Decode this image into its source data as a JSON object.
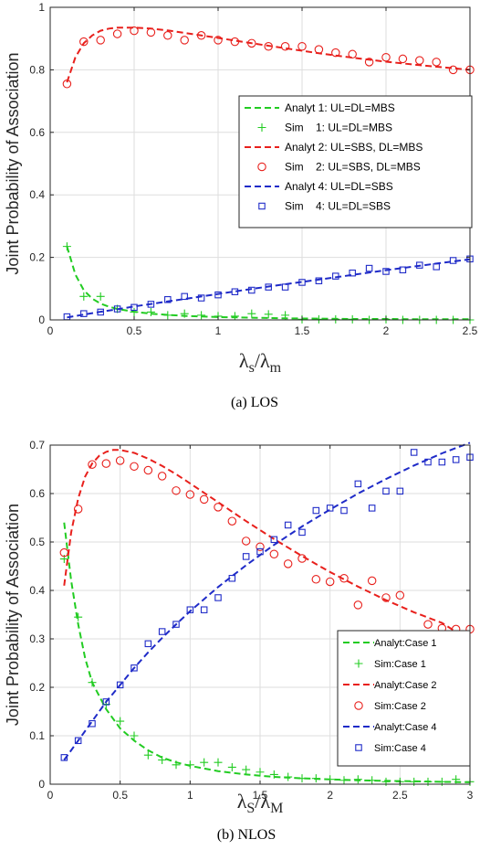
{
  "colors": {
    "green": "#22cc22",
    "red": "#e8201c",
    "blue": "#1f2bc8"
  },
  "chart_data": [
    {
      "type": "line",
      "caption": "(a) LOS",
      "ylabel": "Joint Probability of Association",
      "xlabel": {
        "main1": "λ",
        "sub1": "s",
        "slash": "/λ",
        "sub2": "m"
      },
      "xlim": [
        0,
        2.5
      ],
      "ylim": [
        0,
        1
      ],
      "xticks": [
        0,
        0.5,
        1,
        1.5,
        2,
        2.5
      ],
      "yticks": [
        0,
        0.2,
        0.4,
        0.6,
        0.8,
        1
      ],
      "xtick_labels": [
        "0",
        "0.5",
        "1",
        "1.5",
        "2",
        "2.5"
      ],
      "ytick_labels": [
        "0",
        "0.2",
        "0.4",
        "0.6",
        "0.8",
        "1"
      ],
      "grid": true,
      "legend_position": "right-middle",
      "legend": [
        "Analyt 1: UL=DL=MBS",
        "Sim    1: UL=DL=MBS",
        "Analyt 2: UL=SBS, DL=MBS",
        "Sim    2: UL=SBS, DL=MBS",
        "Analyt 4: UL=DL=SBS",
        "Sim    4: UL=DL=SBS"
      ],
      "series": [
        {
          "name": "Analyt 1: UL=DL=MBS",
          "style": "dashed",
          "color": "green",
          "x": [
            0.1,
            0.15,
            0.2,
            0.25,
            0.3,
            0.35,
            0.4,
            0.5,
            0.6,
            0.7,
            0.8,
            0.9,
            1.0,
            1.2,
            1.4,
            1.6,
            1.8,
            2.0,
            2.2,
            2.4,
            2.5
          ],
          "y": [
            0.235,
            0.145,
            0.095,
            0.068,
            0.052,
            0.042,
            0.035,
            0.026,
            0.02,
            0.016,
            0.013,
            0.011,
            0.009,
            0.007,
            0.005,
            0.004,
            0.003,
            0.003,
            0.002,
            0.002,
            0.002
          ]
        },
        {
          "name": "Sim    1: UL=DL=MBS",
          "style": "plus",
          "color": "green",
          "x": [
            0.1,
            0.2,
            0.3,
            0.4,
            0.5,
            0.6,
            0.7,
            0.8,
            0.9,
            1.0,
            1.1,
            1.2,
            1.3,
            1.4,
            1.5,
            1.6,
            1.7,
            1.8,
            1.9,
            2.0,
            2.1,
            2.2,
            2.3,
            2.4,
            2.5
          ],
          "y": [
            0.235,
            0.075,
            0.075,
            0.035,
            0.025,
            0.025,
            0.015,
            0.02,
            0.015,
            0.012,
            0.012,
            0.02,
            0.018,
            0.015,
            0.002,
            0.002,
            0.002,
            0.002,
            0.0,
            0.002,
            0.0,
            0.0,
            0.0,
            0.0,
            0.0
          ]
        },
        {
          "name": "Analyt 2: UL=SBS, DL=MBS",
          "style": "dashed",
          "color": "red",
          "x": [
            0.1,
            0.15,
            0.2,
            0.25,
            0.3,
            0.35,
            0.4,
            0.5,
            0.6,
            0.7,
            0.8,
            0.9,
            1.0,
            1.2,
            1.4,
            1.6,
            1.8,
            2.0,
            2.2,
            2.4,
            2.5
          ],
          "y": [
            0.76,
            0.84,
            0.885,
            0.91,
            0.925,
            0.932,
            0.935,
            0.935,
            0.932,
            0.926,
            0.918,
            0.91,
            0.902,
            0.885,
            0.869,
            0.853,
            0.839,
            0.826,
            0.815,
            0.805,
            0.8
          ]
        },
        {
          "name": "Sim    2: UL=SBS, DL=MBS",
          "style": "circle",
          "color": "red",
          "x": [
            0.1,
            0.2,
            0.3,
            0.4,
            0.5,
            0.6,
            0.7,
            0.8,
            0.9,
            1.0,
            1.1,
            1.2,
            1.3,
            1.4,
            1.5,
            1.6,
            1.7,
            1.8,
            1.9,
            2.0,
            2.1,
            2.2,
            2.3,
            2.4,
            2.5
          ],
          "y": [
            0.755,
            0.89,
            0.895,
            0.915,
            0.925,
            0.92,
            0.91,
            0.895,
            0.91,
            0.895,
            0.89,
            0.885,
            0.875,
            0.875,
            0.875,
            0.865,
            0.855,
            0.85,
            0.825,
            0.84,
            0.835,
            0.83,
            0.825,
            0.8,
            0.8
          ]
        },
        {
          "name": "Analyt 4: UL=DL=SBS",
          "style": "dashed",
          "color": "blue",
          "x": [
            0.1,
            0.2,
            0.3,
            0.4,
            0.5,
            0.6,
            0.7,
            0.8,
            0.9,
            1.0,
            1.2,
            1.4,
            1.6,
            1.8,
            2.0,
            2.2,
            2.4,
            2.5
          ],
          "y": [
            0.008,
            0.017,
            0.026,
            0.034,
            0.043,
            0.051,
            0.059,
            0.067,
            0.075,
            0.083,
            0.099,
            0.114,
            0.129,
            0.144,
            0.159,
            0.173,
            0.187,
            0.194
          ]
        },
        {
          "name": "Sim    4: UL=DL=SBS",
          "style": "square",
          "color": "blue",
          "x": [
            0.1,
            0.2,
            0.3,
            0.4,
            0.5,
            0.6,
            0.7,
            0.8,
            0.9,
            1.0,
            1.1,
            1.2,
            1.3,
            1.4,
            1.5,
            1.6,
            1.7,
            1.8,
            1.9,
            2.0,
            2.1,
            2.2,
            2.3,
            2.4,
            2.5
          ],
          "y": [
            0.01,
            0.02,
            0.025,
            0.035,
            0.04,
            0.05,
            0.065,
            0.075,
            0.07,
            0.08,
            0.09,
            0.095,
            0.105,
            0.105,
            0.12,
            0.125,
            0.14,
            0.15,
            0.165,
            0.155,
            0.16,
            0.175,
            0.17,
            0.19,
            0.195
          ]
        }
      ]
    },
    {
      "type": "line",
      "caption": "(b) NLOS",
      "ylabel": "Joint Probability of Association",
      "xlabel": {
        "main1": "λ",
        "sub1": "S",
        "slash": "/λ",
        "sub2": "M"
      },
      "xlim": [
        0,
        3
      ],
      "ylim": [
        0,
        0.7
      ],
      "xticks": [
        0,
        0.5,
        1,
        1.5,
        2,
        2.5,
        3
      ],
      "yticks": [
        0,
        0.1,
        0.2,
        0.3,
        0.4,
        0.5,
        0.6,
        0.7
      ],
      "xtick_labels": [
        "0",
        "0.5",
        "1",
        "1.5",
        "2",
        "2.5",
        "3"
      ],
      "ytick_labels": [
        "0",
        "0.1",
        "0.2",
        "0.3",
        "0.4",
        "0.5",
        "0.6",
        "0.7"
      ],
      "grid": true,
      "legend_position": "bottom-right",
      "legend": [
        "Analyt:Case 1",
        "Sim:Case 1",
        "Analyt:Case 2",
        "Sim:Case 2",
        "Analyt:Case 4",
        "Sim:Case 4"
      ],
      "series": [
        {
          "name": "Analyt:Case 1",
          "style": "dashed",
          "color": "green",
          "x": [
            0.1,
            0.15,
            0.2,
            0.25,
            0.3,
            0.4,
            0.5,
            0.6,
            0.7,
            0.8,
            0.9,
            1.0,
            1.2,
            1.4,
            1.6,
            1.8,
            2.0,
            2.2,
            2.4,
            2.6,
            2.8,
            3.0
          ],
          "y": [
            0.54,
            0.42,
            0.33,
            0.26,
            0.21,
            0.155,
            0.115,
            0.09,
            0.07,
            0.055,
            0.045,
            0.038,
            0.027,
            0.02,
            0.015,
            0.012,
            0.01,
            0.008,
            0.007,
            0.006,
            0.005,
            0.004
          ]
        },
        {
          "name": "Sim:Case 1",
          "style": "plus",
          "color": "green",
          "x": [
            0.1,
            0.2,
            0.3,
            0.4,
            0.5,
            0.6,
            0.7,
            0.8,
            0.9,
            1.0,
            1.1,
            1.2,
            1.3,
            1.4,
            1.5,
            1.6,
            1.7,
            1.8,
            1.9,
            2.0,
            2.1,
            2.2,
            2.3,
            2.4,
            2.5,
            2.6,
            2.7,
            2.8,
            2.9,
            3.0
          ],
          "y": [
            0.465,
            0.345,
            0.21,
            0.165,
            0.13,
            0.1,
            0.06,
            0.05,
            0.04,
            0.04,
            0.045,
            0.045,
            0.035,
            0.03,
            0.025,
            0.02,
            0.015,
            0.012,
            0.012,
            0.01,
            0.008,
            0.01,
            0.008,
            0.005,
            0.005,
            0.005,
            0.005,
            0.005,
            0.01,
            0.005
          ]
        },
        {
          "name": "Analyt:Case 2",
          "style": "dashed",
          "color": "red",
          "x": [
            0.1,
            0.15,
            0.2,
            0.25,
            0.3,
            0.35,
            0.4,
            0.45,
            0.5,
            0.6,
            0.7,
            0.8,
            0.9,
            1.0,
            1.2,
            1.4,
            1.6,
            1.8,
            2.0,
            2.2,
            2.4,
            2.6,
            2.8,
            3.0
          ],
          "y": [
            0.41,
            0.52,
            0.59,
            0.635,
            0.662,
            0.678,
            0.686,
            0.69,
            0.69,
            0.684,
            0.672,
            0.657,
            0.64,
            0.621,
            0.582,
            0.543,
            0.506,
            0.471,
            0.438,
            0.408,
            0.38,
            0.355,
            0.333,
            0.296
          ]
        },
        {
          "name": "Sim:Case 2",
          "style": "circle",
          "color": "red",
          "x": [
            0.1,
            0.2,
            0.3,
            0.4,
            0.5,
            0.6,
            0.7,
            0.8,
            0.9,
            1.0,
            1.1,
            1.2,
            1.3,
            1.4,
            1.5,
            1.6,
            1.7,
            1.8,
            1.9,
            2.0,
            2.1,
            2.2,
            2.3,
            2.4,
            2.5,
            2.6,
            2.7,
            2.8,
            2.9,
            3.0
          ],
          "y": [
            0.478,
            0.568,
            0.66,
            0.662,
            0.668,
            0.656,
            0.648,
            0.636,
            0.606,
            0.598,
            0.588,
            0.572,
            0.543,
            0.502,
            0.49,
            0.475,
            0.455,
            0.466,
            0.423,
            0.418,
            0.425,
            0.37,
            0.42,
            0.385,
            0.39,
            0.3,
            0.33,
            0.322,
            0.32,
            0.32
          ]
        },
        {
          "name": "Analyt:Case 4",
          "style": "dashed",
          "color": "blue",
          "x": [
            0.1,
            0.2,
            0.3,
            0.4,
            0.5,
            0.6,
            0.7,
            0.8,
            0.9,
            1.0,
            1.2,
            1.4,
            1.6,
            1.8,
            2.0,
            2.2,
            2.4,
            2.6,
            2.8,
            3.0
          ],
          "y": [
            0.05,
            0.09,
            0.13,
            0.17,
            0.205,
            0.24,
            0.272,
            0.302,
            0.33,
            0.357,
            0.407,
            0.452,
            0.494,
            0.532,
            0.567,
            0.6,
            0.63,
            0.658,
            0.683,
            0.705
          ]
        },
        {
          "name": "Sim:Case 4",
          "style": "square",
          "color": "blue",
          "x": [
            0.1,
            0.2,
            0.3,
            0.4,
            0.5,
            0.6,
            0.7,
            0.8,
            0.9,
            1.0,
            1.1,
            1.2,
            1.3,
            1.4,
            1.5,
            1.6,
            1.7,
            1.8,
            1.9,
            2.0,
            2.1,
            2.2,
            2.3,
            2.4,
            2.5,
            2.6,
            2.7,
            2.8,
            2.9,
            3.0
          ],
          "y": [
            0.055,
            0.09,
            0.125,
            0.17,
            0.205,
            0.24,
            0.29,
            0.315,
            0.33,
            0.36,
            0.36,
            0.385,
            0.425,
            0.47,
            0.48,
            0.505,
            0.535,
            0.52,
            0.565,
            0.57,
            0.565,
            0.62,
            0.57,
            0.605,
            0.605,
            0.685,
            0.665,
            0.665,
            0.67,
            0.675
          ]
        }
      ]
    }
  ]
}
